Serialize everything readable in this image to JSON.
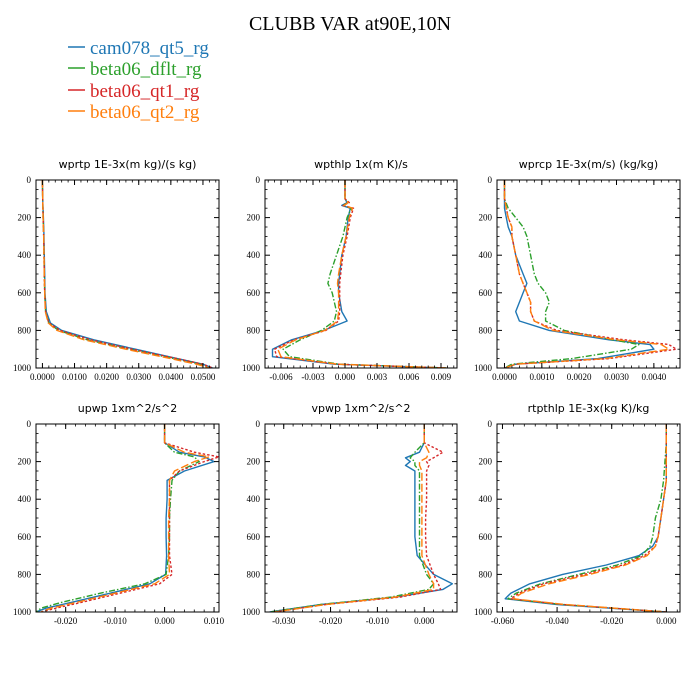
{
  "figure_title": "CLUBB VAR at90E,10N",
  "legend": [
    {
      "label": "cam078_qt5_rg",
      "color": "#1f77b4",
      "dash": ""
    },
    {
      "label": "beta06_dflt_rg",
      "color": "#2ca02c",
      "dash": "6,2,1.5,2"
    },
    {
      "label": "beta06_qt1_rg",
      "color": "#d62728",
      "dash": "2.5,2"
    },
    {
      "label": "beta06_qt2_rg",
      "color": "#ff7f0e",
      "dash": "8,3"
    }
  ],
  "chart_data": [
    {
      "type": "line",
      "title": "wprtp  1E-3x(m kg)/(s kg)",
      "xlim": [
        -0.002,
        0.055
      ],
      "ylim": [
        0,
        1000
      ],
      "y_inverted": true,
      "xticks": [
        0.0,
        0.01,
        0.02,
        0.03,
        0.04,
        0.05
      ],
      "xtick_labels": [
        "0.0000",
        "0.0100",
        "0.0200",
        "0.0300",
        "0.0400",
        "0.0500"
      ],
      "yticks": [
        0,
        200,
        400,
        600,
        800,
        1000
      ],
      "ytick_labels": [
        "0",
        "200",
        "400",
        "600",
        "800",
        "1000"
      ],
      "y": [
        0,
        100,
        200,
        300,
        400,
        500,
        600,
        700,
        760,
        800,
        850,
        900,
        950,
        980,
        1000
      ],
      "series": [
        {
          "name": "cam078_qt5_rg",
          "x": [
            0,
            0.0001,
            0.0003,
            0.0005,
            0.0006,
            0.0007,
            0.0008,
            0.0012,
            0.0025,
            0.006,
            0.016,
            0.029,
            0.042,
            0.05,
            0.053
          ]
        },
        {
          "name": "beta06_dflt_rg",
          "x": [
            0,
            0.0001,
            0.0002,
            0.0004,
            0.0005,
            0.0006,
            0.0007,
            0.001,
            0.002,
            0.005,
            0.014,
            0.027,
            0.041,
            0.049,
            0.052
          ]
        },
        {
          "name": "beta06_qt1_rg",
          "x": [
            0,
            0.0001,
            0.0002,
            0.0004,
            0.0005,
            0.0006,
            0.0007,
            0.001,
            0.002,
            0.0055,
            0.015,
            0.028,
            0.042,
            0.05,
            0.053
          ]
        },
        {
          "name": "beta06_qt2_rg",
          "x": [
            0,
            0.0001,
            0.0002,
            0.0004,
            0.0005,
            0.0006,
            0.0007,
            0.0009,
            0.0018,
            0.0045,
            0.013,
            0.026,
            0.04,
            0.048,
            0.052
          ]
        }
      ]
    },
    {
      "type": "line",
      "title": "wpthlp  1x(m K)/s",
      "xlim": [
        -0.0075,
        0.0105
      ],
      "ylim": [
        0,
        1000
      ],
      "y_inverted": true,
      "xticks": [
        -0.006,
        -0.003,
        0.0,
        0.003,
        0.006,
        0.009
      ],
      "xtick_labels": [
        "-0.006",
        "-0.003",
        "0.000",
        "0.003",
        "0.006",
        "0.009"
      ],
      "yticks": [
        0,
        200,
        400,
        600,
        800,
        1000
      ],
      "ytick_labels": [
        "0",
        "200",
        "400",
        "600",
        "800",
        "1000"
      ],
      "y": [
        0,
        100,
        120,
        135,
        150,
        200,
        300,
        400,
        500,
        550,
        600,
        700,
        750,
        800,
        850,
        900,
        940,
        980,
        1000
      ],
      "series": [
        {
          "name": "cam078_qt5_rg",
          "x": [
            0,
            0,
            0.0002,
            -0.0003,
            0.0005,
            0.0003,
            0.0001,
            -0.0003,
            -0.0005,
            -0.0006,
            -0.0006,
            -0.0003,
            0.0002,
            -0.002,
            -0.005,
            -0.0068,
            -0.0068,
            -0.001,
            0.0095
          ]
        },
        {
          "name": "beta06_dflt_rg",
          "x": [
            0,
            0,
            0.0003,
            -0.0002,
            0.0006,
            0.0002,
            -0.0002,
            -0.0008,
            -0.0014,
            -0.0016,
            -0.0012,
            -0.0008,
            -0.001,
            -0.0022,
            -0.0042,
            -0.0058,
            -0.0052,
            -0.0005,
            0.0095
          ]
        },
        {
          "name": "beta06_qt1_rg",
          "x": [
            0,
            0,
            0.0004,
            -0.0002,
            0.0008,
            0.0005,
            0.0002,
            -0.0002,
            -0.0004,
            -0.0005,
            -0.0005,
            -0.0005,
            -0.0006,
            -0.0018,
            -0.0048,
            -0.0066,
            -0.0064,
            -0.0008,
            0.0095
          ]
        },
        {
          "name": "beta06_qt2_rg",
          "x": [
            0,
            0,
            0.0003,
            -0.0001,
            0.0007,
            0.0004,
            0.0001,
            -0.0003,
            -0.0006,
            -0.0007,
            -0.0006,
            -0.0006,
            -0.0007,
            -0.0019,
            -0.0046,
            -0.0063,
            -0.006,
            -0.0007,
            0.0095
          ]
        }
      ]
    },
    {
      "type": "line",
      "title": "wprcp  1E-3x(m/s) (kg/kg)",
      "xlim": [
        -0.0002,
        0.0047
      ],
      "ylim": [
        0,
        1000
      ],
      "y_inverted": true,
      "xticks": [
        0.0,
        0.001,
        0.002,
        0.003,
        0.004
      ],
      "xtick_labels": [
        "0.0000",
        "0.0010",
        "0.0020",
        "0.0030",
        "0.0040"
      ],
      "yticks": [
        0,
        200,
        400,
        600,
        800,
        1000
      ],
      "ytick_labels": [
        "0",
        "200",
        "400",
        "600",
        "800",
        "1000"
      ],
      "y": [
        0,
        100,
        150,
        200,
        250,
        300,
        400,
        500,
        550,
        600,
        650,
        700,
        750,
        800,
        850,
        875,
        900,
        950,
        980,
        1000
      ],
      "series": [
        {
          "name": "cam078_qt5_rg",
          "x": [
            0,
            0,
            0,
            5e-05,
            0.0001,
            0.0002,
            0.0003,
            0.0005,
            0.0006,
            0.0005,
            0.0004,
            0.0003,
            0.0004,
            0.0012,
            0.0028,
            0.0039,
            0.004,
            0.0025,
            0.0003,
            0
          ]
        },
        {
          "name": "beta06_dflt_rg",
          "x": [
            0,
            0,
            0.0001,
            0.0003,
            0.0005,
            0.0006,
            0.0007,
            0.0008,
            0.0009,
            0.0011,
            0.0012,
            0.0011,
            0.0011,
            0.0016,
            0.0029,
            0.0036,
            0.0034,
            0.0018,
            0.0002,
            0
          ]
        },
        {
          "name": "beta06_qt1_rg",
          "x": [
            0,
            0,
            5e-05,
            0.0001,
            0.0002,
            0.0002,
            0.0003,
            0.0004,
            0.0005,
            0.0006,
            0.0007,
            0.0007,
            0.0008,
            0.0014,
            0.0032,
            0.0044,
            0.0046,
            0.0028,
            0.0003,
            0
          ]
        },
        {
          "name": "beta06_qt2_rg",
          "x": [
            0,
            0,
            5e-05,
            0.0001,
            0.0002,
            0.0002,
            0.0003,
            0.0004,
            0.0005,
            0.0006,
            0.0007,
            0.0007,
            0.0008,
            0.0013,
            0.003,
            0.0042,
            0.0044,
            0.0027,
            0.0003,
            0
          ]
        }
      ]
    },
    {
      "type": "line",
      "title": "upwp  1xm^2/s^2",
      "xlim": [
        -0.026,
        0.011
      ],
      "ylim": [
        0,
        1000
      ],
      "y_inverted": true,
      "xticks": [
        -0.02,
        -0.01,
        0.0,
        0.01
      ],
      "xtick_labels": [
        "-0.020",
        "-0.010",
        "0.000",
        "0.010"
      ],
      "yticks": [
        0,
        200,
        400,
        600,
        800,
        1000
      ],
      "ytick_labels": [
        "0",
        "200",
        "400",
        "600",
        "800",
        "1000"
      ],
      "y": [
        0,
        100,
        150,
        175,
        200,
        250,
        300,
        400,
        500,
        600,
        700,
        800,
        850,
        900,
        950,
        980,
        1000
      ],
      "series": [
        {
          "name": "cam078_qt5_rg",
          "x": [
            0,
            0,
            0.003,
            0.008,
            0.01,
            0.004,
            0.0005,
            0.0005,
            0.0003,
            0.0003,
            0.0004,
            0.0002,
            -0.003,
            -0.011,
            -0.019,
            -0.024,
            -0.026
          ]
        },
        {
          "name": "beta06_dflt_rg",
          "x": [
            0,
            0,
            0.002,
            0.006,
            0.007,
            0.003,
            0.0015,
            0.0012,
            0.001,
            0.001,
            0.0008,
            0.0003,
            -0.004,
            -0.013,
            -0.021,
            -0.025,
            -0.026
          ]
        },
        {
          "name": "beta06_qt1_rg",
          "x": [
            0,
            0,
            0.006,
            0.011,
            0.008,
            0.003,
            0.001,
            0.001,
            0.001,
            0.001,
            0.001,
            0.0015,
            -0.001,
            -0.009,
            -0.017,
            -0.022,
            -0.025
          ]
        },
        {
          "name": "beta06_qt2_rg",
          "x": [
            0,
            0,
            0.004,
            0.009,
            0.006,
            0.002,
            0.001,
            0.001,
            0.0008,
            0.0008,
            0.0008,
            0.001,
            -0.002,
            -0.01,
            -0.018,
            -0.023,
            -0.025
          ]
        }
      ]
    },
    {
      "type": "line",
      "title": "vpwp  1xm^2/s^2",
      "xlim": [
        -0.034,
        0.007
      ],
      "ylim": [
        0,
        1000
      ],
      "y_inverted": true,
      "xticks": [
        -0.03,
        -0.02,
        -0.01,
        0.0
      ],
      "xtick_labels": [
        "-0.030",
        "-0.020",
        "-0.010",
        "0.000"
      ],
      "yticks": [
        0,
        200,
        400,
        600,
        800,
        1000
      ],
      "ytick_labels": [
        "0",
        "200",
        "400",
        "600",
        "800",
        "1000"
      ],
      "y": [
        0,
        100,
        150,
        180,
        200,
        220,
        250,
        300,
        400,
        500,
        600,
        700,
        800,
        850,
        880,
        920,
        960,
        1000
      ],
      "series": [
        {
          "name": "cam078_qt5_rg",
          "x": [
            0,
            0,
            -0.001,
            -0.004,
            -0.003,
            -0.004,
            -0.002,
            -0.002,
            -0.002,
            -0.002,
            -0.002,
            -0.0015,
            0.002,
            0.006,
            0.004,
            -0.006,
            -0.022,
            -0.033
          ]
        },
        {
          "name": "beta06_dflt_rg",
          "x": [
            0,
            0,
            -0.002,
            -0.003,
            -0.002,
            -0.002,
            -0.001,
            -0.001,
            -0.001,
            -0.001,
            -0.001,
            -0.001,
            0.0005,
            0.002,
            0.001,
            -0.007,
            -0.022,
            -0.033
          ]
        },
        {
          "name": "beta06_qt1_rg",
          "x": [
            0,
            0,
            0.004,
            0.002,
            0.0005,
            0.001,
            0.0005,
            0.0005,
            0.0005,
            0.0003,
            0.0003,
            0.0005,
            0.002,
            0.003,
            0.0035,
            -0.005,
            -0.021,
            -0.032
          ]
        },
        {
          "name": "beta06_qt2_rg",
          "x": [
            0,
            0,
            0.001,
            0.0005,
            -0.001,
            -0.001,
            -0.0005,
            -0.0005,
            -0.0005,
            -0.0005,
            -0.0005,
            -0.0005,
            0.001,
            0.002,
            0.002,
            -0.006,
            -0.021,
            -0.032
          ]
        }
      ]
    },
    {
      "type": "line",
      "title": "rtpthlp  1E-3x(kg K)/kg",
      "xlim": [
        -0.062,
        0.005
      ],
      "ylim": [
        0,
        1000
      ],
      "y_inverted": true,
      "xticks": [
        -0.06,
        -0.04,
        -0.02,
        0.0
      ],
      "xtick_labels": [
        "-0.060",
        "-0.040",
        "-0.020",
        "0.000"
      ],
      "yticks": [
        0,
        200,
        400,
        600,
        800,
        1000
      ],
      "ytick_labels": [
        "0",
        "200",
        "400",
        "600",
        "800",
        "1000"
      ],
      "y": [
        0,
        100,
        300,
        400,
        500,
        600,
        650,
        700,
        750,
        800,
        850,
        900,
        930,
        960,
        1000
      ],
      "series": [
        {
          "name": "cam078_qt5_rg",
          "x": [
            0,
            0,
            0,
            -0.001,
            -0.002,
            -0.003,
            -0.005,
            -0.01,
            -0.022,
            -0.038,
            -0.05,
            -0.057,
            -0.059,
            -0.04,
            0
          ]
        },
        {
          "name": "beta06_dflt_rg",
          "x": [
            0,
            0,
            -0.001,
            -0.002,
            -0.004,
            -0.005,
            -0.006,
            -0.009,
            -0.018,
            -0.032,
            -0.046,
            -0.055,
            -0.058,
            -0.038,
            0
          ]
        },
        {
          "name": "beta06_qt1_rg",
          "x": [
            0,
            0,
            0,
            -0.001,
            -0.002,
            -0.003,
            -0.004,
            -0.008,
            -0.016,
            -0.03,
            -0.045,
            -0.054,
            -0.057,
            -0.038,
            0
          ]
        },
        {
          "name": "beta06_qt2_rg",
          "x": [
            0,
            0,
            0,
            -0.001,
            -0.002,
            -0.003,
            -0.004,
            -0.007,
            -0.015,
            -0.028,
            -0.043,
            -0.053,
            -0.056,
            -0.037,
            0
          ]
        }
      ]
    }
  ]
}
